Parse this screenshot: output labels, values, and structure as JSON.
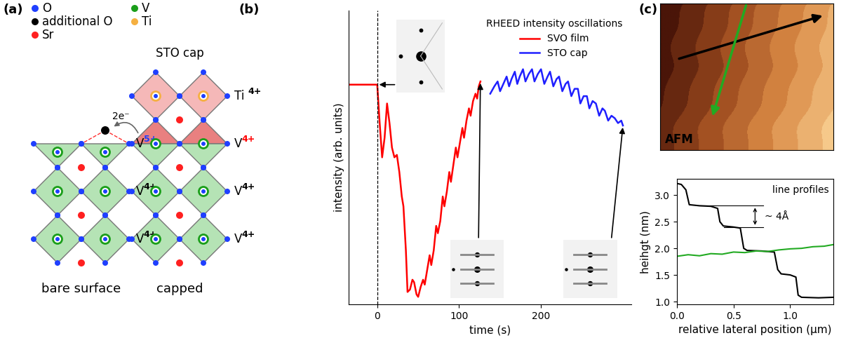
{
  "panel_labels": {
    "a": "(a)",
    "b": "(b)",
    "c": "(c)"
  },
  "diagram": {
    "legend": [
      {
        "label": "O",
        "color": "#1f3fff"
      },
      {
        "label": "additional O",
        "color": "#000000"
      },
      {
        "label": "Sr",
        "color": "#ff2020"
      },
      {
        "label": "V",
        "color": "#1a9e1a"
      },
      {
        "label": "Ti",
        "color": "#f5b041"
      }
    ],
    "bare_surface": {
      "caption": "bare surface",
      "electron_transfer": "2e⁻",
      "layers": [
        {
          "element": "V",
          "charge": "5+",
          "charge_color": "#1a3cff"
        },
        {
          "element": "V",
          "charge": "4+"
        },
        {
          "element": "V",
          "charge": "4+"
        }
      ]
    },
    "capped": {
      "caption": "capped",
      "cap_label": "STO cap",
      "layers": [
        {
          "element": "Ti",
          "charge": "4+"
        },
        {
          "element": "V",
          "charge": "4+",
          "charge_color": "#ff0000"
        },
        {
          "element": "V",
          "charge": "4+"
        },
        {
          "element": "V",
          "charge": "4+"
        }
      ]
    }
  },
  "chart_data": [
    {
      "type": "line",
      "xlabel": "time (s)",
      "ylabel": "intensity (arb. units)",
      "xlim": [
        -35,
        310
      ],
      "ylim": [
        -2,
        118
      ],
      "xticks": [
        0,
        100,
        200
      ],
      "yticks": [],
      "tick_labels": "x",
      "legend": "upper right",
      "legend_title": "RHEED intensity oscillations",
      "vline": 0,
      "series": [
        {
          "name": "SVO film",
          "color": "#ff0000",
          "x": [
            -35,
            0,
            3,
            6,
            9,
            12,
            15,
            18,
            21,
            24,
            27,
            30,
            32,
            35,
            37,
            40,
            43,
            45,
            48,
            50,
            53,
            56,
            58,
            61,
            64,
            66,
            69,
            72,
            74,
            77,
            80,
            82,
            85,
            88,
            90,
            93,
            96,
            98,
            101,
            104,
            106,
            109,
            112,
            114,
            117,
            120,
            122,
            124,
            126
          ],
          "values": [
            87.7,
            87.7,
            72,
            58,
            66,
            80,
            72,
            62,
            58,
            59,
            52,
            42,
            38,
            20,
            3,
            4,
            8,
            7,
            2,
            1,
            5,
            8,
            6,
            12,
            18,
            14,
            20,
            30,
            27,
            32,
            42,
            38,
            44,
            52,
            48,
            55,
            62,
            58,
            64,
            70,
            66,
            73,
            78,
            75,
            81,
            84,
            82,
            87,
            89
          ]
        },
        {
          "name": "STO cap",
          "color": "#1f1fff",
          "x": [
            138,
            143,
            147,
            150,
            154,
            158,
            161,
            164,
            168,
            171,
            174,
            178,
            181,
            185,
            189,
            192,
            196,
            200,
            204,
            208,
            211,
            215,
            219,
            222,
            226,
            230,
            233,
            237,
            241,
            245,
            248,
            252,
            256,
            259,
            263,
            267,
            271,
            275,
            278,
            282,
            286,
            290,
            294,
            298,
            300
          ],
          "values": [
            84,
            87,
            89,
            85,
            88,
            91,
            87,
            90,
            93,
            88,
            91,
            94,
            89,
            92,
            94,
            89,
            92,
            94,
            88,
            91,
            93,
            87,
            90,
            91,
            85,
            88,
            89,
            83,
            86,
            86,
            80,
            83,
            83,
            78,
            81,
            80,
            75,
            78,
            77,
            73,
            75,
            74,
            72,
            73,
            71
          ]
        }
      ]
    },
    {
      "type": "line",
      "xlabel": "relative lateral position (µm)",
      "ylabel": "heihgt (nm)",
      "xlim": [
        0.0,
        1.38
      ],
      "ylim": [
        0.95,
        3.3
      ],
      "xticks": [
        0.0,
        0.5,
        1.0
      ],
      "yticks": [
        1.0,
        1.5,
        2.0,
        2.5,
        3.0
      ],
      "annotations": [
        {
          "text": "line profiles"
        },
        {
          "text": "~ 4Å",
          "levels": [
            2.8,
            2.4
          ]
        }
      ],
      "series": [
        {
          "color": "#000000",
          "x": [
            0.0,
            0.04,
            0.08,
            0.11,
            0.2,
            0.3,
            0.36,
            0.38,
            0.41,
            0.5,
            0.56,
            0.59,
            0.62,
            0.75,
            0.86,
            0.89,
            0.92,
            1.0,
            1.05,
            1.07,
            1.1,
            1.25,
            1.38
          ],
          "values": [
            3.22,
            3.2,
            3.1,
            2.82,
            2.8,
            2.79,
            2.75,
            2.5,
            2.42,
            2.4,
            2.38,
            2.0,
            1.96,
            1.95,
            1.93,
            1.6,
            1.52,
            1.5,
            1.46,
            1.12,
            1.08,
            1.07,
            1.08
          ]
        },
        {
          "color": "#22aa22",
          "x": [
            0.0,
            0.1,
            0.2,
            0.3,
            0.4,
            0.5,
            0.6,
            0.7,
            0.8,
            0.9,
            1.0,
            1.1,
            1.2,
            1.3,
            1.38
          ],
          "values": [
            1.85,
            1.88,
            1.86,
            1.9,
            1.89,
            1.93,
            1.92,
            1.95,
            1.94,
            1.97,
            1.99,
            2.0,
            2.03,
            2.04,
            2.07
          ]
        }
      ]
    }
  ],
  "afm": {
    "label": "AFM"
  }
}
